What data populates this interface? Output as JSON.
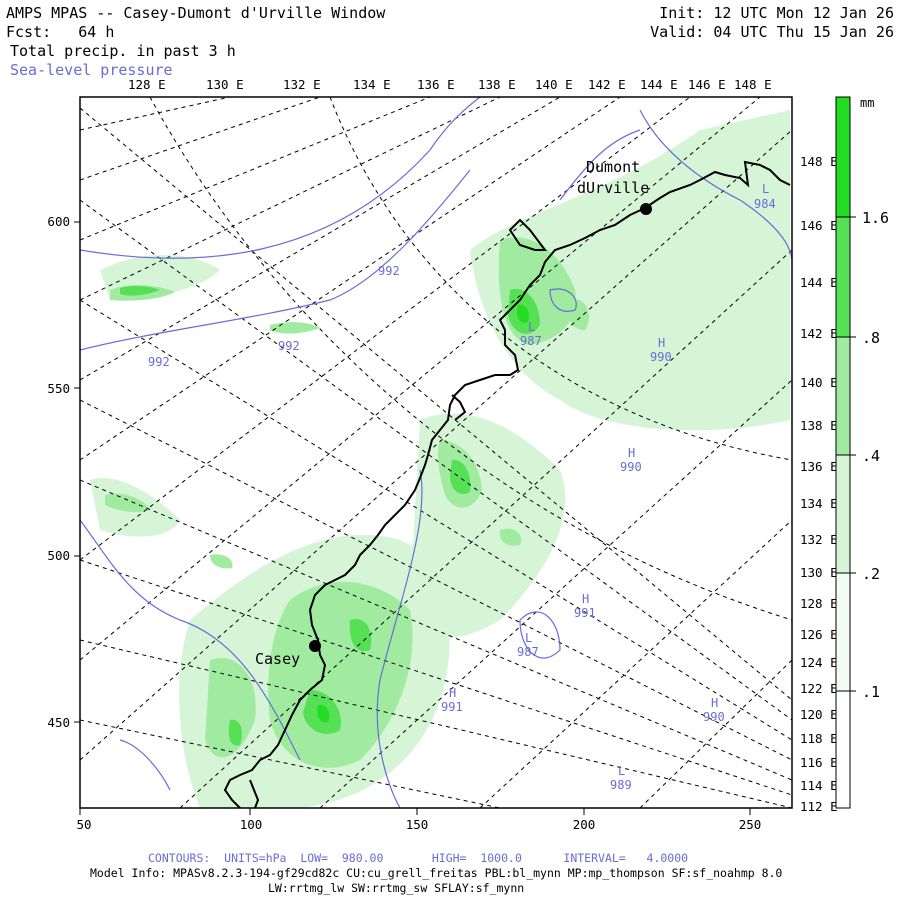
{
  "header": {
    "title": "AMPS MPAS -- Casey-Dumont d'Urville Window",
    "forecast": "Fcst:   64 h",
    "field": "Total precip. in past 3 h",
    "overlay": "Sea-level pressure",
    "init": "Init: 12 UTC Mon 12 Jan 26",
    "valid": "Valid: 04 UTC Thu 15 Jan 26"
  },
  "axes": {
    "top_lon_labels": [
      "128 E",
      "130 E",
      "132 E",
      "134 E",
      "136 E",
      "138 E",
      "140 E",
      "142 E",
      "144 E",
      "146 E",
      "148 E"
    ],
    "right_lon_labels": [
      "148 E",
      "146 E",
      "144 E",
      "142 E",
      "140 E",
      "138 E",
      "136 E",
      "134 E",
      "132 E",
      "130 E",
      "128 E",
      "126 E",
      "124 E",
      "122 E",
      "120 E",
      "118 E",
      "116 E",
      "114 E",
      "112 E"
    ],
    "bottom_ticks": [
      "50",
      "100",
      "150",
      "200",
      "250"
    ],
    "left_ticks": [
      "600",
      "550",
      "500",
      "450"
    ]
  },
  "colorbar": {
    "unit": "mm",
    "labels": [
      "1.6",
      ".8",
      ".4",
      ".2",
      ".1"
    ]
  },
  "stations": [
    {
      "name": "Casey"
    },
    {
      "name_line1": "Dumont",
      "name_line2": "dUrville"
    }
  ],
  "pressure_labels": [
    {
      "kind": "",
      "value": "992"
    },
    {
      "kind": "",
      "value": "992"
    },
    {
      "kind": "",
      "value": "992"
    },
    {
      "kind": "L",
      "value": "987"
    },
    {
      "kind": "H",
      "value": "990"
    },
    {
      "kind": "H",
      "value": "990"
    },
    {
      "kind": "H",
      "value": "991"
    },
    {
      "kind": "L",
      "value": "987"
    },
    {
      "kind": "H",
      "value": "991"
    },
    {
      "kind": "H",
      "value": "990"
    },
    {
      "kind": "L",
      "value": "989"
    },
    {
      "kind": "L",
      "value": "984"
    }
  ],
  "footer": {
    "contours": "CONTOURS:  UNITS=hPa  LOW=  980.00       HIGH=  1000.0      INTERVAL=   4.0000",
    "model_info": "Model Info: MPASv8.2.3-194-gf29cd82c CU:cu_grell_freitas PBL:bl_mynn MP:mp_thompson SF:sf_noahmp 8.0",
    "model_info2": "LW:rrtmg_lw SW:rrtmg_sw SFLAY:sf_mynn"
  },
  "colors": {
    "precip_light": "#d6f5d6",
    "precip_mid": "#a0eba0",
    "precip_strong": "#55e055",
    "precip_max": "#22dd22",
    "contour": "#6b6bd6"
  }
}
